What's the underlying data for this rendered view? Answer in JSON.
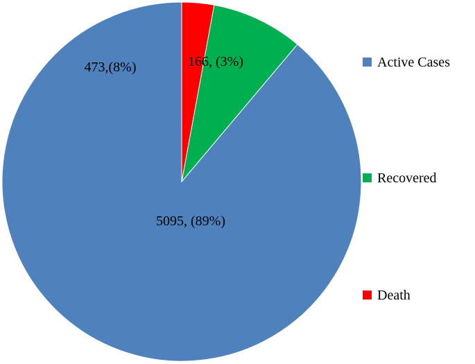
{
  "chart_data": {
    "type": "pie",
    "slices": [
      {
        "name": "Active Cases",
        "value": 5095,
        "percent": 89,
        "label": "5095, (89%)",
        "color": "#4F81BD"
      },
      {
        "name": "Recovered",
        "value": 473,
        "percent": 8,
        "label": "473,(8%)",
        "color": "#00B050"
      },
      {
        "name": "Death",
        "value": 166,
        "percent": 3,
        "label": "166, (3%)",
        "color": "#FF0000"
      }
    ],
    "legend_position": "right",
    "start_angle": "top, clockwise"
  }
}
